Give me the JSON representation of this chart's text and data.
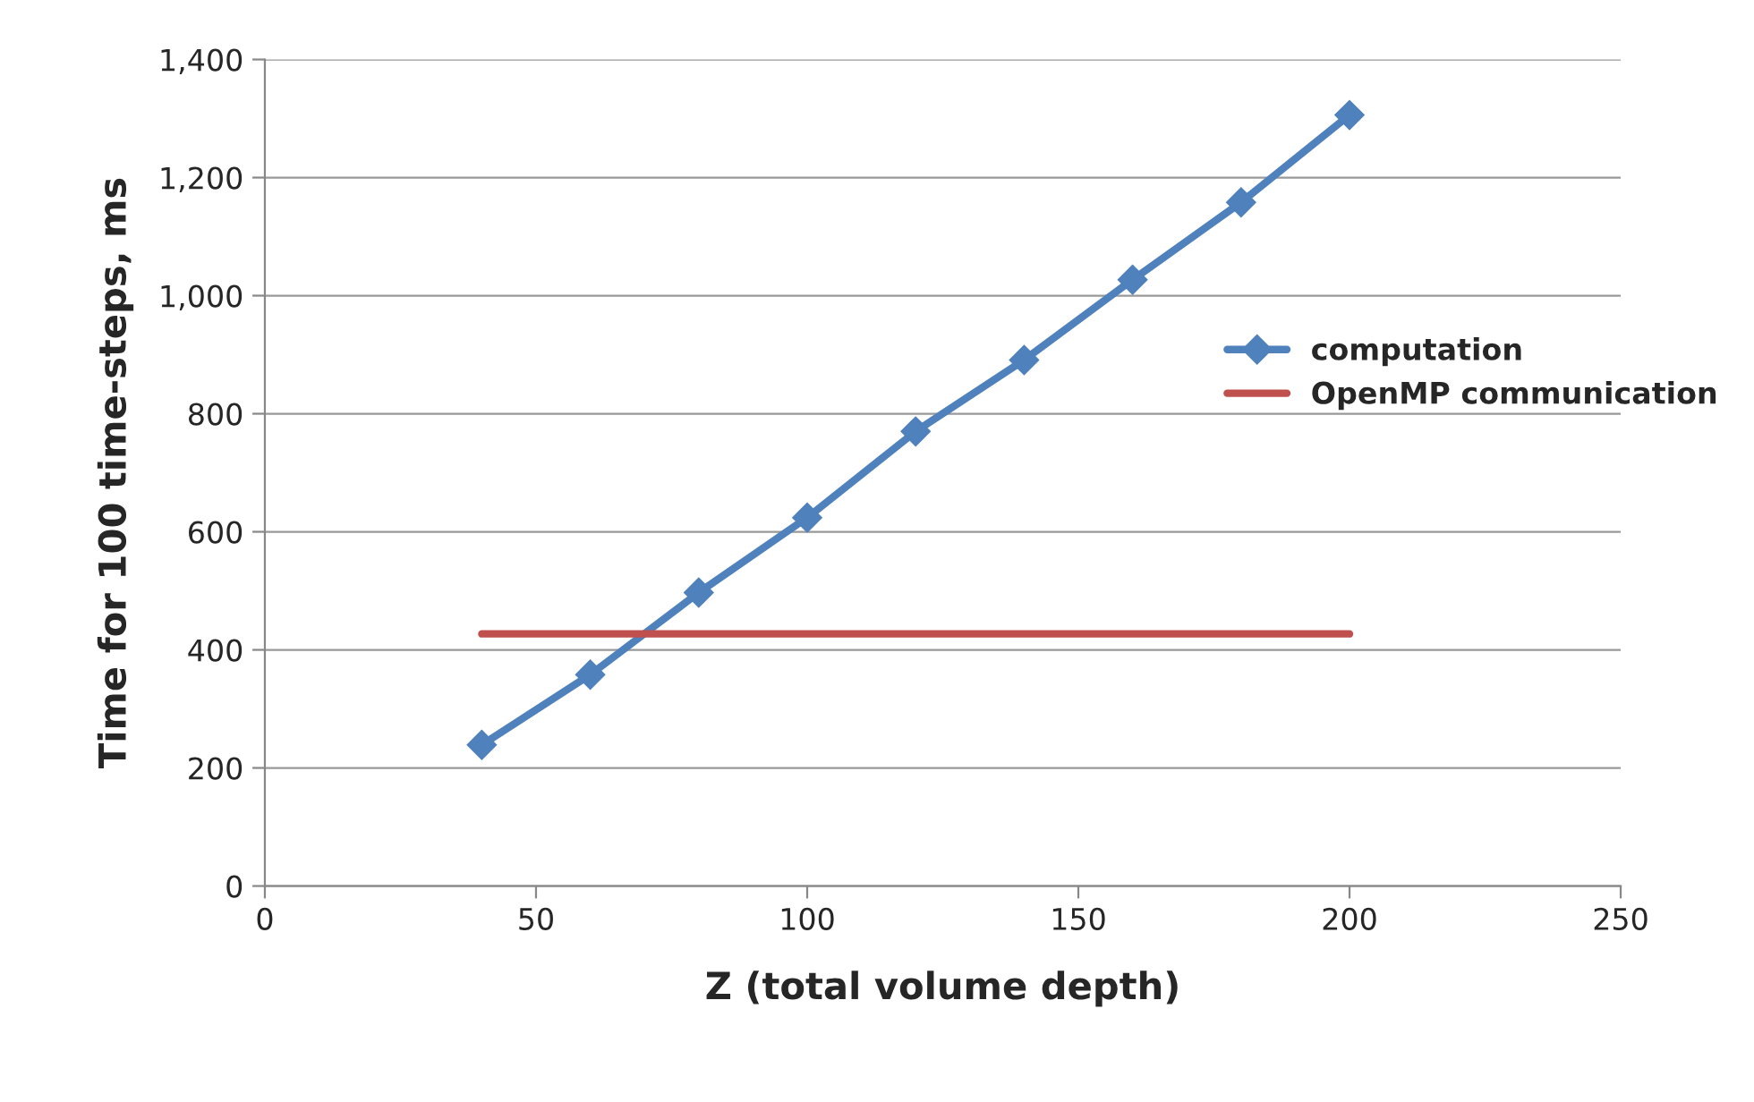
{
  "chart_data": {
    "type": "line",
    "xlabel": "Z (total volume depth)",
    "ylabel": "Time for 100 time-steps, ms",
    "xlim": [
      0,
      250
    ],
    "xticks": [
      0,
      50,
      100,
      150,
      200,
      250
    ],
    "ylim": [
      0,
      1400
    ],
    "yticks": [
      0,
      200,
      400,
      600,
      800,
      {
        "value": 1000,
        "label": "1,000"
      },
      {
        "value": 1200,
        "label": "1,200"
      },
      {
        "value": 1400,
        "label": "1,400"
      }
    ],
    "grid": "y",
    "legend": "right",
    "line_style": "solid",
    "series": [
      {
        "name": "computation",
        "color": "#4f81bd",
        "marker": "diamond",
        "x": [
          40,
          60,
          80,
          100,
          120,
          140,
          160,
          180,
          200
        ],
        "values": [
          239,
          358,
          497,
          624,
          770,
          891,
          1027,
          1158,
          1306
        ]
      },
      {
        "name": "OpenMP communication",
        "color": "#c0504d",
        "marker": "none",
        "x": [
          40,
          200
        ],
        "values": [
          427,
          427
        ]
      }
    ]
  }
}
